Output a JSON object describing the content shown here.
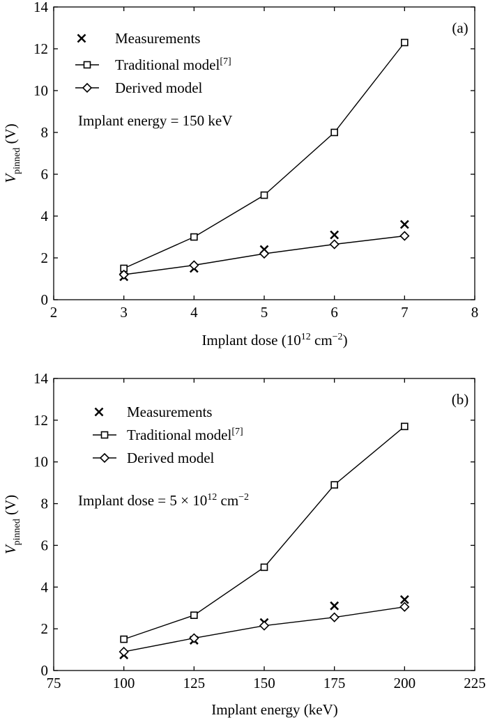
{
  "chart_data": [
    {
      "type": "line",
      "panel_label": "(a)",
      "xlabel": {
        "main": "Implant dose (10",
        "sup1": "12",
        "mid": " cm",
        "sup2": "−2",
        "end": ")"
      },
      "ylabel": {
        "main": "V",
        "sub": "pinned",
        "end": " (V)"
      },
      "xlim": [
        2,
        8
      ],
      "ylim": [
        0,
        14
      ],
      "xticks": [
        "2",
        "3",
        "4",
        "5",
        "6",
        "7",
        "8"
      ],
      "yticks": [
        "0",
        "2",
        "4",
        "6",
        "8",
        "10",
        "12",
        "14"
      ],
      "x": [
        3,
        4,
        5,
        6,
        7
      ],
      "series": [
        {
          "name": "Measurements",
          "marker": "cross",
          "line": false,
          "values": [
            1.1,
            1.5,
            2.4,
            3.1,
            3.6
          ]
        },
        {
          "name": "Traditional model",
          "name_sup": "[7]",
          "marker": "square",
          "line": true,
          "values": [
            1.5,
            3.0,
            5.0,
            8.0,
            12.3
          ]
        },
        {
          "name": "Derived model",
          "marker": "diamond",
          "line": true,
          "values": [
            1.2,
            1.65,
            2.2,
            2.65,
            3.05
          ]
        }
      ],
      "annotation": {
        "text": "Implant energy = 150 keV",
        "sup": "",
        "end": ""
      },
      "legend_position": "top-left",
      "grid": false
    },
    {
      "type": "line",
      "panel_label": "(b)",
      "xlabel": {
        "main": "Implant energy (keV)",
        "sup1": "",
        "mid": "",
        "sup2": "",
        "end": ""
      },
      "ylabel": {
        "main": "V",
        "sub": "pinned",
        "end": " (V)"
      },
      "xlim": [
        75,
        225
      ],
      "ylim": [
        0,
        14
      ],
      "xticks": [
        "75",
        "100",
        "125",
        "150",
        "175",
        "200",
        "225"
      ],
      "yticks": [
        "0",
        "2",
        "4",
        "6",
        "8",
        "10",
        "12",
        "14"
      ],
      "x": [
        100,
        125,
        150,
        175,
        200
      ],
      "series": [
        {
          "name": "Measurements",
          "marker": "cross",
          "line": false,
          "values": [
            0.75,
            1.45,
            2.3,
            3.1,
            3.4
          ]
        },
        {
          "name": "Traditional model",
          "name_sup": "[7]",
          "marker": "square",
          "line": true,
          "values": [
            1.5,
            2.65,
            4.95,
            8.9,
            11.7
          ]
        },
        {
          "name": "Derived model",
          "marker": "diamond",
          "line": true,
          "values": [
            0.9,
            1.55,
            2.15,
            2.55,
            3.05
          ]
        }
      ],
      "annotation": {
        "text": "Implant dose = 5 × 10",
        "sup": "12",
        "end": " cm",
        "sup2": "−2"
      },
      "legend_position": "top-left",
      "grid": false
    }
  ]
}
